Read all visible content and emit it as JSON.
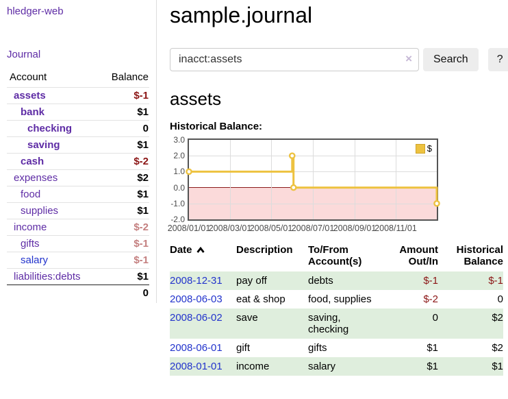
{
  "app": {
    "brand": "hledger-web",
    "nav_journal": "Journal"
  },
  "sidebar": {
    "account_header": "Account",
    "balance_header": "Balance",
    "accounts": [
      {
        "name": "assets",
        "depth": 1,
        "bold": true,
        "balance": "$-1",
        "balance_color": "neg-strong",
        "link_color": "purple"
      },
      {
        "name": "bank",
        "depth": 2,
        "bold": true,
        "balance": "$1",
        "balance_color": "normal",
        "link_color": "purple"
      },
      {
        "name": "checking",
        "depth": 3,
        "bold": true,
        "balance": "0",
        "balance_color": "normal",
        "link_color": "purple"
      },
      {
        "name": "saving",
        "depth": 3,
        "bold": true,
        "balance": "$1",
        "balance_color": "normal",
        "link_color": "purple"
      },
      {
        "name": "cash",
        "depth": 2,
        "bold": true,
        "balance": "$-2",
        "balance_color": "neg-strong",
        "link_color": "purple"
      },
      {
        "name": "expenses",
        "depth": 1,
        "bold": false,
        "balance": "$2",
        "balance_color": "normal",
        "link_color": "purple"
      },
      {
        "name": "food",
        "depth": 2,
        "bold": false,
        "balance": "$1",
        "balance_color": "normal",
        "link_color": "purple"
      },
      {
        "name": "supplies",
        "depth": 2,
        "bold": false,
        "balance": "$1",
        "balance_color": "normal",
        "link_color": "purple"
      },
      {
        "name": "income",
        "depth": 1,
        "bold": false,
        "balance": "$-2",
        "balance_color": "neg-soft",
        "link_color": "purple"
      },
      {
        "name": "gifts",
        "depth": 2,
        "bold": false,
        "balance": "$-1",
        "balance_color": "neg-soft",
        "link_color": "purple"
      },
      {
        "name": "salary",
        "depth": 2,
        "bold": false,
        "balance": "$-1",
        "balance_color": "neg-soft",
        "link_color": "blue"
      },
      {
        "name": "liabilities:debts",
        "depth": 1,
        "bold": false,
        "balance": "$1",
        "balance_color": "normal",
        "link_color": "purple"
      }
    ],
    "total": "0"
  },
  "header": {
    "title": "sample.journal"
  },
  "search": {
    "value": "inacct:assets",
    "clear_icon": "×",
    "button_label": "Search",
    "help_label": "?"
  },
  "account_page": {
    "heading": "assets",
    "chart_label": "Historical Balance:"
  },
  "chart_data": {
    "type": "line",
    "step": true,
    "title": "Historical Balance",
    "series": [
      {
        "name": "$",
        "color": "#edc240",
        "points": [
          [
            "2008-01-01",
            1
          ],
          [
            "2008-06-01",
            2
          ],
          [
            "2008-06-03",
            0
          ],
          [
            "2008-12-31",
            -1
          ]
        ]
      }
    ],
    "ylim": [
      -2,
      3
    ],
    "yticks": [
      "3.0",
      "2.0",
      "1.0",
      "0.0",
      "-1.0",
      "-2.0"
    ],
    "xticks": [
      "2008/01/01",
      "2008/03/01",
      "2008/05/01",
      "2008/07/01",
      "2008/09/01",
      "2008/11/01"
    ],
    "legend": {
      "label": "$",
      "position": "top-right"
    },
    "colors": {
      "line": "#edc240",
      "negative_fill": "#fbdada",
      "zero_line": "#8b1a1a",
      "grid": "#dcdcdc",
      "border": "#545454"
    }
  },
  "register": {
    "columns": [
      {
        "label": "Date",
        "sorted": "asc"
      },
      {
        "label": "Description"
      },
      {
        "label": "To/From Account(s)"
      },
      {
        "label": "Amount Out/In"
      },
      {
        "label": "Historical Balance"
      }
    ],
    "rows": [
      {
        "date": "2008-12-31",
        "description": "pay off",
        "accounts": "debts",
        "amount": "$-1",
        "amount_neg": true,
        "balance": "$-1",
        "balance_neg": true
      },
      {
        "date": "2008-06-03",
        "description": "eat & shop",
        "accounts": "food, supplies",
        "amount": "$-2",
        "amount_neg": true,
        "balance": "0",
        "balance_neg": false
      },
      {
        "date": "2008-06-02",
        "description": "save",
        "accounts": "saving, checking",
        "amount": "0",
        "amount_neg": false,
        "balance": "$2",
        "balance_neg": false
      },
      {
        "date": "2008-06-01",
        "description": "gift",
        "accounts": "gifts",
        "amount": "$1",
        "amount_neg": false,
        "balance": "$2",
        "balance_neg": false
      },
      {
        "date": "2008-01-01",
        "description": "income",
        "accounts": "salary",
        "amount": "$1",
        "amount_neg": false,
        "balance": "$1",
        "balance_neg": false
      }
    ]
  }
}
